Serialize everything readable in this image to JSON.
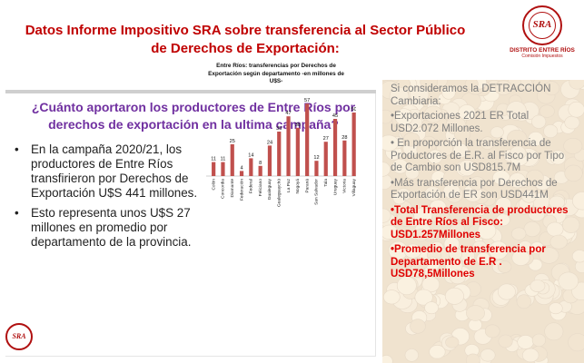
{
  "header": {
    "title": "Datos Informe Impositivo SRA sobre transferencia al Sector Público de Derechos de Exportación:",
    "logo_text": "SRA",
    "logo_brand": "DISTRITO ENTRE RÍOS",
    "logo_sub": "Comisión Impuestos"
  },
  "slide": {
    "question": "¿Cuánto aportaron los productores de Entre Ríos por derechos de exportación en la ultima campaña?",
    "bullets": [
      "En la campaña 2020/21, los productores de Entre Ríos transfirieron por Derechos de Exportación U$S 441 millones.",
      "Esto representa unos U$S 27 millones en promedio por departamento de la provincia."
    ],
    "footer_logo": "SRA"
  },
  "chart_data": {
    "type": "bar",
    "title": "Entre Ríos: transferencias por Derechos de Exportación según departamento -en millones de U$S-",
    "categories": [
      "Colón",
      "Concordia",
      "Diamante",
      "Federación",
      "Federal",
      "Feliciano",
      "Gualeguay",
      "Gualeguaychú",
      "La Paz",
      "Nogoyá",
      "Paraná",
      "San Salvador",
      "Tala",
      "Uruguay",
      "Victoria",
      "Villaguay"
    ],
    "values": [
      11,
      11,
      25,
      4,
      14,
      8,
      24,
      35,
      47,
      38,
      57,
      12,
      27,
      45,
      28,
      50
    ],
    "ylim": [
      0,
      60
    ],
    "color": "#c0504d",
    "grid": false,
    "legend": "none"
  },
  "right_panel": {
    "p1": "Si consideramos la DETRACCIÓN Cambiaria:",
    "p2": "•Exportaciones 2021 ER Total USD2.072 Millones.",
    "p3": "• En proporción la transferencia de Productores de E.R. al Fisco por Tipo de Cambio son USD815.7M",
    "p4": "•Más transferencia por Derechos de Exportación de ER son USD441M",
    "p5": "•Total Transferencia de productores de Entre Ríos al Fisco: USD1.257Millones",
    "p6": "•Promedio de transferencia por Departamento de E.R . USD78,5Millones"
  }
}
